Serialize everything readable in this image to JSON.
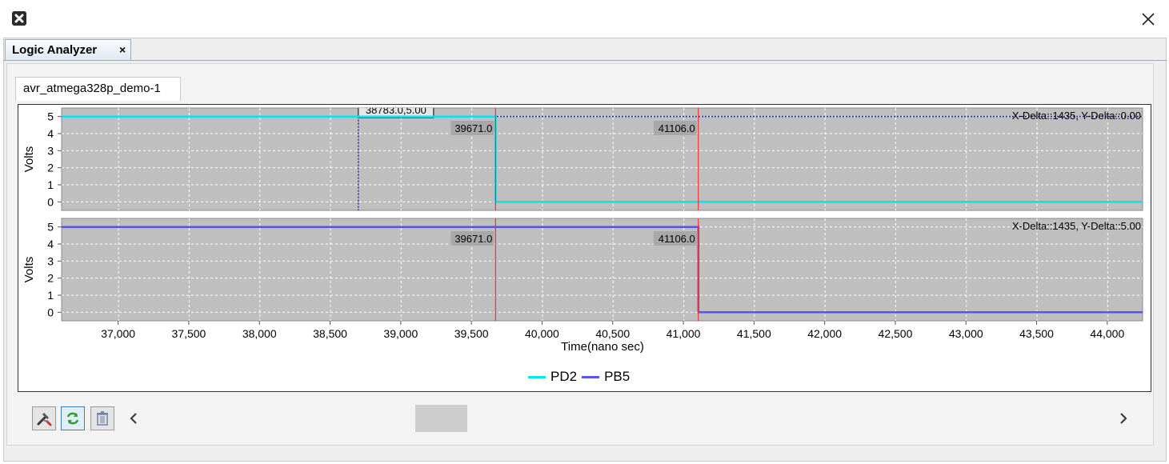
{
  "window": {
    "app_icon": "app-logo-icon",
    "close_icon": "close-icon"
  },
  "outer_tab": {
    "label": "Logic Analyzer",
    "close_glyph": "×"
  },
  "inner_tab": {
    "label": "avr_atmega328p_demo-1"
  },
  "colors": {
    "plot_bg": "#bfbfbf",
    "grid": "#ffffff",
    "pd2": "#00e5ee",
    "pb5": "#5555ee",
    "marker": "#ff2a2a",
    "cursor": "#2222cc"
  },
  "chart_data": [
    {
      "type": "line",
      "ylabel": "Volts",
      "xlabel": "Time(nano sec)",
      "xlim": [
        36600,
        44250
      ],
      "ylim": [
        -0.5,
        5.5
      ],
      "y_ticks": [
        "0",
        "1",
        "2",
        "3",
        "4",
        "5"
      ],
      "series": [
        {
          "name": "PD2",
          "color": "#00e5ee",
          "x": [
            36600,
            39671,
            39671,
            44250
          ],
          "y": [
            5,
            5,
            0,
            0
          ]
        }
      ],
      "markers": [
        {
          "x": 39671,
          "label": "39671.0"
        },
        {
          "x": 41106,
          "label": "41106.0"
        }
      ],
      "cursor": {
        "x": 38700,
        "y": 5,
        "label": "38783.0,5.00"
      },
      "delta_text": "X-Delta::1435, Y-Delta::0.00"
    },
    {
      "type": "line",
      "ylabel": "Volts",
      "xlabel": "Time(nano sec)",
      "xlim": [
        36600,
        44250
      ],
      "ylim": [
        -0.5,
        5.5
      ],
      "y_ticks": [
        "0",
        "1",
        "2",
        "3",
        "4",
        "5"
      ],
      "x_ticks": [
        "37,000",
        "37,500",
        "38,000",
        "38,500",
        "39,000",
        "39,500",
        "40,000",
        "40,500",
        "41,000",
        "41,500",
        "42,000",
        "42,500",
        "43,000",
        "43,500",
        "44,000"
      ],
      "x_tick_values": [
        37000,
        37500,
        38000,
        38500,
        39000,
        39500,
        40000,
        40500,
        41000,
        41500,
        42000,
        42500,
        43000,
        43500,
        44000
      ],
      "series": [
        {
          "name": "PB5",
          "color": "#5555ee",
          "x": [
            36600,
            41106,
            41106,
            44250
          ],
          "y": [
            5,
            5,
            0,
            0
          ]
        }
      ],
      "markers": [
        {
          "x": 39671,
          "label": "39671.0"
        },
        {
          "x": 41106,
          "label": "41106.0"
        }
      ],
      "delta_text": "X-Delta::1435, Y-Delta::5.00"
    }
  ],
  "legend": [
    {
      "name": "PD2",
      "color": "#00e5ee"
    },
    {
      "name": "PB5",
      "color": "#5555ee"
    }
  ],
  "toolbar": {
    "settings_icon": "tools-icon",
    "refresh_icon": "refresh-icon",
    "delete_icon": "trash-icon",
    "scroll_left_glyph": "‹",
    "scroll_right_glyph": "›"
  }
}
